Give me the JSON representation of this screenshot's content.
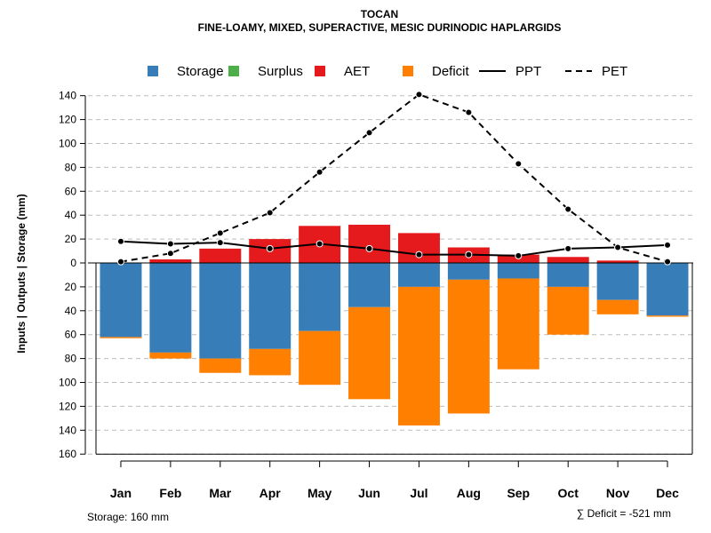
{
  "chart_data": {
    "type": "bar",
    "title": "TOCAN",
    "subtitle": "FINE-LOAMY, MIXED, SUPERACTIVE, MESIC DURINODIC HAPLARGIDS",
    "ylabel": "Inputs | Outputs | Storage    (mm)",
    "ylim": [
      -160,
      150
    ],
    "yticks": [
      140,
      120,
      100,
      80,
      60,
      40,
      20,
      0,
      -20,
      -40,
      -60,
      -80,
      -100,
      -120,
      -140,
      -160
    ],
    "ytick_labels": [
      "140",
      "120",
      "100",
      "80",
      "60",
      "40",
      "20",
      "0",
      "20",
      "40",
      "60",
      "80",
      "100",
      "120",
      "140",
      "160"
    ],
    "grid": true,
    "legend": {
      "position": "top",
      "entries": [
        {
          "label": "Storage",
          "kind": "box",
          "color": "#377EB8"
        },
        {
          "label": "Surplus",
          "kind": "box",
          "color": "#4DAF4A"
        },
        {
          "label": "AET",
          "kind": "box",
          "color": "#E41A1C"
        },
        {
          "label": "Deficit",
          "kind": "box",
          "color": "#FF7F00"
        },
        {
          "label": "PPT",
          "kind": "solid-line",
          "color": "#000000"
        },
        {
          "label": "PET",
          "kind": "dashed-line",
          "color": "#000000"
        }
      ]
    },
    "categories": [
      "Jan",
      "Feb",
      "Mar",
      "Apr",
      "May",
      "Jun",
      "Jul",
      "Aug",
      "Sep",
      "Oct",
      "Nov",
      "Dec"
    ],
    "bar_series": [
      {
        "name": "AET",
        "color": "#E41A1C",
        "direction": "up",
        "values": [
          0,
          3,
          12,
          20,
          31,
          32,
          25,
          13,
          7,
          5,
          2,
          0
        ]
      },
      {
        "name": "Storage",
        "color": "#377EB8",
        "direction": "down",
        "values": [
          62,
          75,
          80,
          72,
          57,
          37,
          20,
          14,
          13,
          20,
          31,
          44
        ]
      },
      {
        "name": "Deficit",
        "color": "#FF7F00",
        "direction": "down",
        "values": [
          1,
          5,
          12,
          22,
          45,
          77,
          116,
          112,
          76,
          40,
          12,
          1
        ]
      }
    ],
    "line_series": [
      {
        "name": "PPT",
        "style": "solid",
        "color": "#000000",
        "values": [
          18,
          16,
          17,
          12,
          16,
          12,
          7,
          7,
          6,
          12,
          13,
          15
        ]
      },
      {
        "name": "PET",
        "style": "dashed",
        "color": "#000000",
        "values": [
          1,
          8,
          25,
          42,
          76,
          109,
          141,
          126,
          83,
          45,
          13,
          1
        ]
      }
    ],
    "notes": {
      "storage": "Storage: 160 mm",
      "deficit": "∑ Deficit = -521 mm"
    }
  }
}
